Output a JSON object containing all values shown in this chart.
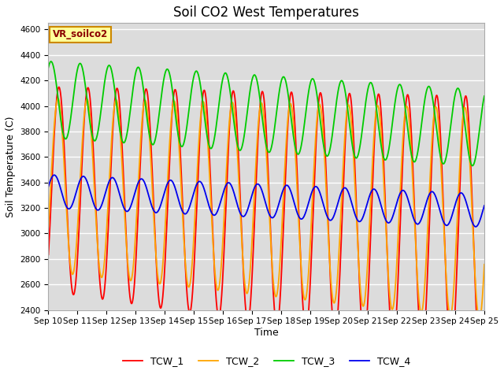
{
  "title": "Soil CO2 West Temperatures",
  "xlabel": "Time",
  "ylabel": "Soil Temperature (C)",
  "ylim": [
    2400,
    4650
  ],
  "xlim": [
    0,
    15
  ],
  "x_tick_labels": [
    "Sep 10",
    "Sep 11",
    "Sep 12",
    "Sep 13",
    "Sep 14",
    "Sep 15",
    "Sep 16",
    "Sep 17",
    "Sep 18",
    "Sep 19",
    "Sep 20",
    "Sep 21",
    "Sep 22",
    "Sep 23",
    "Sep 24",
    "Sep 25"
  ],
  "annotation": "VR_soilco2",
  "legend_labels": [
    "TCW_1",
    "TCW_2",
    "TCW_3",
    "TCW_4"
  ],
  "line_colors": [
    "#ff0000",
    "#ffa500",
    "#00cc00",
    "#0000ee"
  ],
  "plot_bg_color": "#dcdcdc",
  "grid_color": "#ffffff",
  "title_fontsize": 12,
  "tick_fontsize": 7.5,
  "ylabel_fontsize": 9,
  "xlabel_fontsize": 9,
  "legend_fontsize": 9
}
